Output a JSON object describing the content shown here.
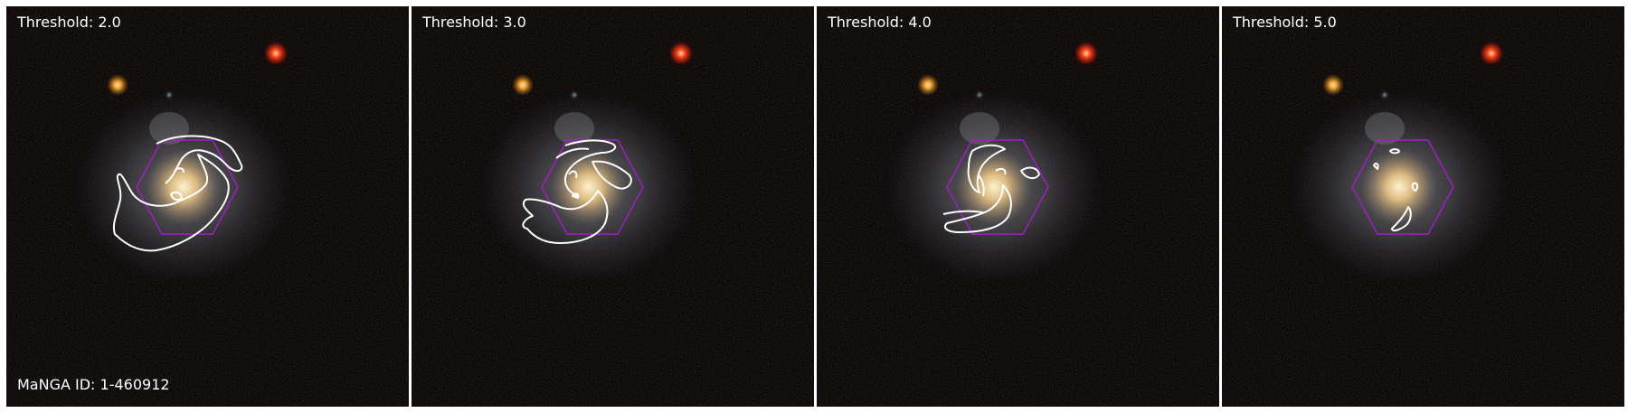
{
  "panels": [
    {
      "label": "Threshold: 2.0"
    },
    {
      "label": "Threshold: 3.0"
    },
    {
      "label": "Threshold: 4.0"
    },
    {
      "label": "Threshold: 5.0"
    }
  ],
  "galaxy_id_label": "MaNGA ID: 1-460912",
  "colors": {
    "background": "#000000",
    "contour": "#ffffff",
    "ifu_hexagon": "#a020c8",
    "galaxy_core": "#f4d9a0",
    "red_star": "#ff3b1a",
    "orange_star": "#e8a030"
  }
}
